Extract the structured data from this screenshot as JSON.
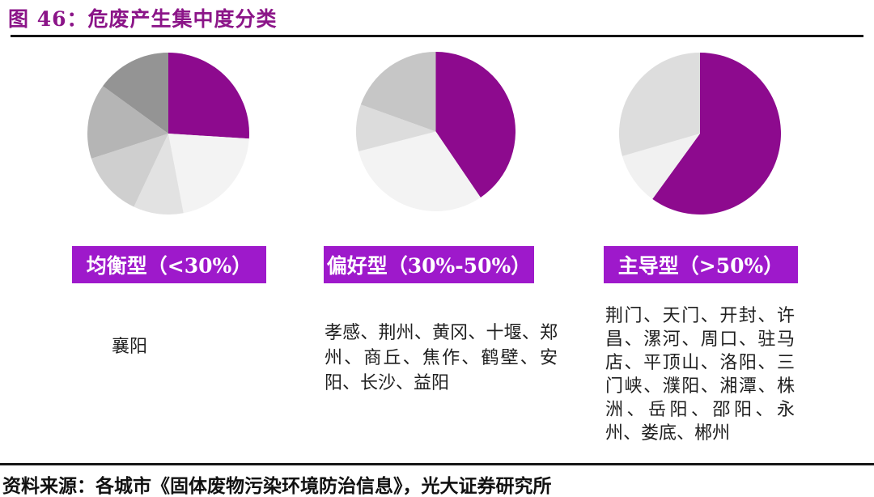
{
  "header": {
    "title": "图 46：危废产生集中度分类"
  },
  "colors": {
    "title_text": "#8b1588",
    "pie_purple": "#8d0a8e",
    "category_bar": "#9e19cb",
    "divider": "#151515",
    "body_text": "#1f1f1f"
  },
  "chart_data": [
    {
      "type": "pie",
      "title": "均衡型（<30%）",
      "values": [
        26,
        21,
        10,
        13,
        15,
        15
      ],
      "colors": [
        "#8d0a8e",
        "#f3f3f3",
        "#e2e2e2",
        "#cfcfcf",
        "#b5b5b5",
        "#949494"
      ],
      "legend_position": "none",
      "cities": [
        "襄阳"
      ]
    },
    {
      "type": "pie",
      "title": "偏好型（30%-50%）",
      "values": [
        40.5,
        30.5,
        9.5,
        19.5
      ],
      "colors": [
        "#8d0a8e",
        "#f3f3f3",
        "#dcdcdc",
        "#c6c6c6"
      ],
      "legend_position": "none",
      "cities": [
        "孝感",
        "荆州",
        "黄冈",
        "十堰",
        "郑州",
        "商丘",
        "焦作",
        "鹤壁",
        "安阳",
        "长沙",
        "益阳"
      ]
    },
    {
      "type": "pie",
      "title": "主导型（>50%）",
      "values": [
        60,
        10.5,
        29.5
      ],
      "colors": [
        "#8d0a8e",
        "#f1f1f1",
        "#dddddd"
      ],
      "legend_position": "none",
      "cities": [
        "荆门",
        "天门",
        "开封",
        "许昌",
        "漯河",
        "周口",
        "驻马店",
        "平顶山",
        "洛阳",
        "三门峡",
        "濮阳",
        "湘潭",
        "株洲",
        "岳阳",
        "邵阳",
        "永州",
        "娄底",
        "郴州"
      ]
    }
  ],
  "footer": {
    "source": "资料来源：各城市《固体废物污染环境防治信息》，光大证券研究所"
  }
}
